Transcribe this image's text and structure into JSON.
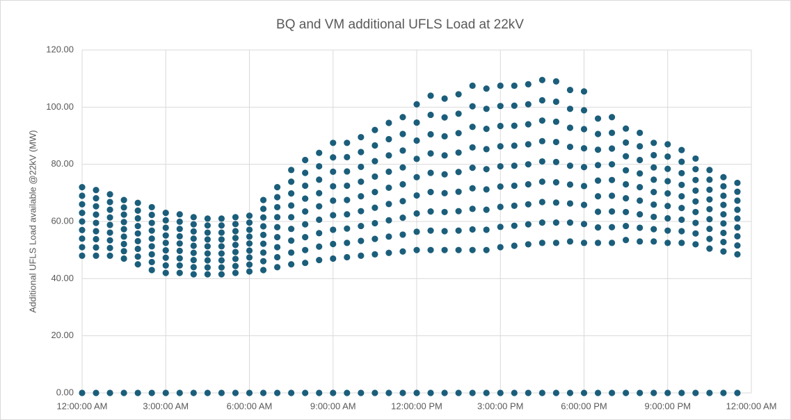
{
  "chart_data": {
    "type": "scatter",
    "title": "BQ and VM additional UFLS Load at 22kV",
    "y_label": "Additional UFLS Load available @22kV (MW)",
    "xlim": [
      0,
      24
    ],
    "xticks": [
      {
        "value": 0,
        "label": "12:00:00 AM"
      },
      {
        "value": 3,
        "label": "3:00:00 AM"
      },
      {
        "value": 6,
        "label": "6:00:00 AM"
      },
      {
        "value": 9,
        "label": "9:00:00 AM"
      },
      {
        "value": 12,
        "label": "12:00:00 PM"
      },
      {
        "value": 15,
        "label": "3:00:00 PM"
      },
      {
        "value": 18,
        "label": "6:00:00 PM"
      },
      {
        "value": 21,
        "label": "9:00:00 PM"
      },
      {
        "value": 24,
        "label": "12:00:00 AM"
      }
    ],
    "ylim": [
      0,
      120
    ],
    "yticks": [
      {
        "value": 0,
        "label": "0.00"
      },
      {
        "value": 20,
        "label": "20.00"
      },
      {
        "value": 40,
        "label": "40.00"
      },
      {
        "value": 60,
        "label": "60.00"
      },
      {
        "value": 80,
        "label": "80.00"
      },
      {
        "value": 100,
        "label": "100.00"
      },
      {
        "value": 120,
        "label": "120.00"
      }
    ],
    "grid": true,
    "x": [
      0,
      0.5,
      1,
      1.5,
      2,
      2.5,
      3,
      3.5,
      4,
      4.5,
      5,
      5.5,
      6,
      6.5,
      7,
      7.5,
      8,
      8.5,
      9,
      9.5,
      10,
      10.5,
      11,
      11.5,
      12,
      12.5,
      13,
      13.5,
      14,
      14.5,
      15,
      15.5,
      16,
      16.5,
      17,
      17.5,
      18,
      18.5,
      19,
      19.5,
      20,
      20.5,
      21,
      21.5,
      22,
      22.5,
      23,
      23.5
    ],
    "series": [
      {
        "color": "#1b5e7b",
        "values": [
          48,
          48,
          48,
          47,
          45,
          43,
          42,
          42,
          41.5,
          41.5,
          41.5,
          42,
          42.5,
          43,
          44,
          45,
          45.5,
          46.5,
          47,
          47.5,
          48,
          48.5,
          49,
          49.5,
          50,
          50,
          50,
          50,
          50,
          50,
          51,
          51.5,
          52,
          52.5,
          52.5,
          53,
          52.5,
          52.5,
          52.5,
          53.5,
          53,
          53,
          52.5,
          52.5,
          52,
          50.5,
          49.5,
          48.5
        ]
      },
      {
        "color": "#1b5e7b",
        "values": [
          51,
          50.9,
          50.7,
          49.6,
          47.7,
          45.8,
          44.6,
          44.6,
          44,
          43.9,
          43.9,
          44.4,
          44.9,
          46.1,
          47.5,
          49.1,
          50,
          51.2,
          52.1,
          52.5,
          53.2,
          53.9,
          54.7,
          55.4,
          56.4,
          56.8,
          56.6,
          56.8,
          57.2,
          57.1,
          58.1,
          58.5,
          59,
          59.6,
          59.6,
          59.6,
          59.1,
          57.9,
          58,
          58.4,
          57.8,
          57.3,
          56.8,
          56.6,
          55.8,
          53.9,
          52.8,
          51.6
        ]
      },
      {
        "color": "#1b5e7b",
        "values": [
          54,
          53.8,
          53.4,
          52.1,
          50.4,
          48.5,
          47.3,
          47.1,
          46.5,
          46.4,
          46.4,
          46.9,
          47.4,
          49.1,
          51,
          53.3,
          54.5,
          55.9,
          57.1,
          57.5,
          58.4,
          59.4,
          60.4,
          61.3,
          62.8,
          63.5,
          63.3,
          63.6,
          64.4,
          64.1,
          65.1,
          65.5,
          66,
          66.8,
          66.6,
          66.3,
          65.8,
          63.4,
          63.5,
          63.3,
          62.5,
          61.6,
          61.1,
          60.6,
          59.5,
          57.4,
          56,
          54.8
        ]
      },
      {
        "color": "#1b5e7b",
        "values": [
          57,
          56.6,
          56.1,
          54.7,
          53.1,
          51.3,
          49.9,
          49.7,
          49,
          48.8,
          48.8,
          49.3,
          49.8,
          52.2,
          54.5,
          57.4,
          59,
          60.6,
          62.2,
          62.5,
          63.6,
          64.8,
          66.1,
          67.1,
          69.1,
          70.3,
          69.9,
          70.4,
          71.6,
          71.2,
          72.2,
          72.5,
          73,
          73.9,
          73.7,
          72.9,
          72.4,
          68.8,
          69,
          68.1,
          67.3,
          65.9,
          65.4,
          64.7,
          63.3,
          60.8,
          59.3,
          57.9
        ]
      },
      {
        "color": "#1b5e7b",
        "values": [
          60,
          59.5,
          58.8,
          57.3,
          55.8,
          54,
          52.5,
          52.3,
          51.5,
          51.3,
          51.3,
          51.8,
          52.3,
          55.3,
          58,
          61.5,
          63.5,
          65.3,
          67.3,
          67.5,
          68.8,
          70.3,
          71.8,
          73,
          75.5,
          77,
          76.5,
          77.3,
          78.8,
          78.3,
          79.3,
          79.5,
          80,
          81,
          80.8,
          79.5,
          79,
          74.3,
          74.5,
          73,
          72,
          70.3,
          69.8,
          68.8,
          67,
          64.3,
          62.5,
          61
        ]
      },
      {
        "color": "#1b5e7b",
        "values": [
          63,
          62.4,
          61.4,
          59.8,
          58.4,
          56.8,
          55.1,
          54.8,
          54,
          53.7,
          53.7,
          54.2,
          54.7,
          58.3,
          61.5,
          65.6,
          68,
          69.9,
          72.3,
          72.5,
          73.9,
          75.7,
          77.4,
          78.9,
          81.9,
          83.8,
          83.1,
          84.1,
          85.9,
          85.3,
          86.3,
          86.5,
          87,
          88.1,
          87.8,
          86.1,
          85.6,
          79.7,
          80,
          77.9,
          76.8,
          74.6,
          74.1,
          72.8,
          70.8,
          67.7,
          65.8,
          64.1
        ]
      },
      {
        "color": "#1b5e7b",
        "values": [
          66,
          65.3,
          64.1,
          62.4,
          61.1,
          59.5,
          57.8,
          57.4,
          56.5,
          56.1,
          56.1,
          56.6,
          57.1,
          61.4,
          65,
          69.8,
          72.5,
          74.6,
          77.4,
          77.5,
          79.1,
          81.1,
          83.1,
          84.8,
          88.3,
          90.5,
          89.8,
          90.9,
          93.1,
          92.4,
          93.4,
          93.5,
          94,
          95.3,
          94.9,
          92.8,
          92.3,
          85.1,
          85.5,
          82.8,
          81.5,
          78.9,
          78.4,
          76.9,
          74.5,
          71.1,
          69,
          67.3
        ]
      },
      {
        "color": "#1b5e7b",
        "values": [
          69,
          68.1,
          66.8,
          64.9,
          63.8,
          62.3,
          60.4,
          59.9,
          59,
          58.6,
          58.6,
          59.1,
          59.6,
          64.4,
          68.5,
          73.9,
          77,
          79.3,
          82.4,
          82.5,
          84.3,
          86.6,
          88.8,
          90.6,
          94.6,
          97.3,
          96.4,
          97.7,
          100.3,
          99.4,
          100.4,
          100.5,
          101,
          102.4,
          101.9,
          99.4,
          98.9,
          90.6,
          91,
          87.6,
          86.3,
          83.2,
          82.7,
          80.9,
          78.3,
          74.6,
          72.3,
          70.4
        ]
      },
      {
        "color": "#1b5e7b",
        "values": [
          72,
          71,
          69.5,
          67.5,
          66.5,
          65,
          63,
          62.5,
          61.5,
          61,
          61,
          61.5,
          62,
          67.5,
          72,
          78,
          81.5,
          84,
          87.5,
          87.5,
          89.5,
          92,
          94.5,
          96.5,
          101,
          104,
          103,
          104.5,
          107.5,
          106.5,
          107.5,
          107.5,
          108,
          109.5,
          109,
          106,
          105.5,
          96,
          96.5,
          92.5,
          91,
          87.5,
          87,
          85,
          82,
          78,
          75.5,
          73.5
        ]
      },
      {
        "color": "#1b5e7b",
        "values": [
          0,
          0,
          0,
          0,
          0,
          0,
          0,
          0,
          0,
          0,
          0,
          0,
          0,
          0,
          0,
          0,
          0,
          0,
          0,
          0,
          0,
          0,
          0,
          0,
          0,
          0,
          0,
          0,
          0,
          0,
          0,
          0,
          0,
          0,
          0,
          0,
          0,
          0,
          0,
          0,
          0,
          0,
          0,
          0,
          0,
          0,
          0,
          0
        ]
      }
    ]
  }
}
